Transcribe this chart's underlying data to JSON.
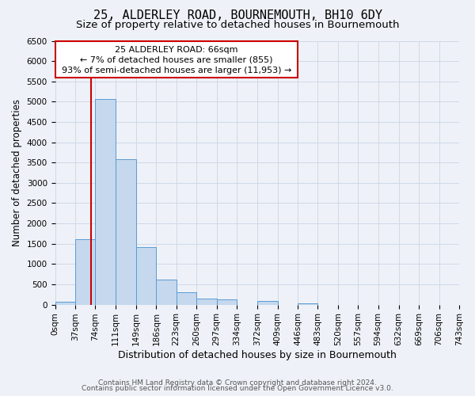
{
  "title": "25, ALDERLEY ROAD, BOURNEMOUTH, BH10 6DY",
  "subtitle": "Size of property relative to detached houses in Bournemouth",
  "xlabel": "Distribution of detached houses by size in Bournemouth",
  "ylabel": "Number of detached properties",
  "bin_edges": [
    0,
    37,
    74,
    111,
    149,
    186,
    223,
    260,
    297,
    334,
    372,
    409,
    446,
    483,
    520,
    557,
    594,
    632,
    669,
    706,
    743
  ],
  "bin_labels": [
    "0sqm",
    "37sqm",
    "74sqm",
    "111sqm",
    "149sqm",
    "186sqm",
    "223sqm",
    "260sqm",
    "297sqm",
    "334sqm",
    "372sqm",
    "409sqm",
    "446sqm",
    "483sqm",
    "520sqm",
    "557sqm",
    "594sqm",
    "632sqm",
    "669sqm",
    "706sqm",
    "743sqm"
  ],
  "bar_heights": [
    70,
    1620,
    5060,
    3580,
    1420,
    610,
    300,
    150,
    120,
    0,
    90,
    0,
    40,
    0,
    0,
    0,
    0,
    0,
    0,
    0
  ],
  "bar_color": "#c5d8ed",
  "bar_edge_color": "#5b9bd5",
  "property_line_x": 66,
  "property_line_color": "#cc0000",
  "annotation_line1": "25 ALDERLEY ROAD: 66sqm",
  "annotation_line2": "← 7% of detached houses are smaller (855)",
  "annotation_line3": "93% of semi-detached houses are larger (11,953) →",
  "ylim": [
    0,
    6500
  ],
  "yticks": [
    0,
    500,
    1000,
    1500,
    2000,
    2500,
    3000,
    3500,
    4000,
    4500,
    5000,
    5500,
    6000,
    6500
  ],
  "grid_color": "#d0d8e8",
  "background_color": "#eef2f8",
  "footer_line1": "Contains HM Land Registry data © Crown copyright and database right 2024.",
  "footer_line2": "Contains public sector information licensed under the Open Government Licence v3.0.",
  "title_fontsize": 11,
  "subtitle_fontsize": 9.5,
  "xlabel_fontsize": 9,
  "ylabel_fontsize": 8.5,
  "tick_fontsize": 7.5,
  "annotation_fontsize": 8,
  "footer_fontsize": 6.5
}
